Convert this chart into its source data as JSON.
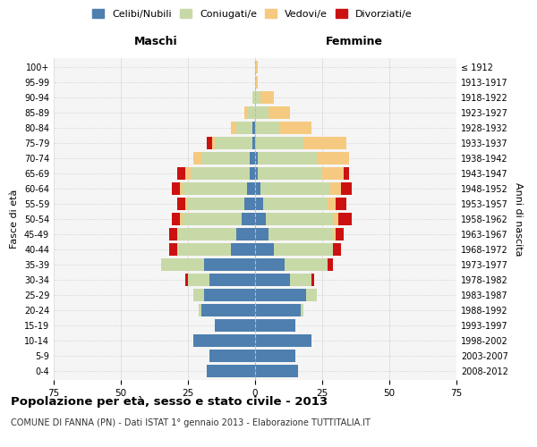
{
  "age_groups": [
    "0-4",
    "5-9",
    "10-14",
    "15-19",
    "20-24",
    "25-29",
    "30-34",
    "35-39",
    "40-44",
    "45-49",
    "50-54",
    "55-59",
    "60-64",
    "65-69",
    "70-74",
    "75-79",
    "80-84",
    "85-89",
    "90-94",
    "95-99",
    "100+"
  ],
  "birth_years": [
    "2008-2012",
    "2003-2007",
    "1998-2002",
    "1993-1997",
    "1988-1992",
    "1983-1987",
    "1978-1982",
    "1973-1977",
    "1968-1972",
    "1963-1967",
    "1958-1962",
    "1953-1957",
    "1948-1952",
    "1943-1947",
    "1938-1942",
    "1933-1937",
    "1928-1932",
    "1923-1927",
    "1918-1922",
    "1913-1917",
    "≤ 1912"
  ],
  "colors": {
    "single": "#4e7faf",
    "married": "#c8d9a8",
    "widowed": "#f5ca80",
    "divorced": "#cc1111"
  },
  "males": {
    "single": [
      18,
      17,
      23,
      15,
      20,
      19,
      17,
      19,
      9,
      7,
      5,
      4,
      3,
      2,
      2,
      1,
      1,
      0,
      0,
      0,
      0
    ],
    "married": [
      0,
      0,
      0,
      0,
      1,
      4,
      8,
      16,
      20,
      22,
      22,
      21,
      24,
      22,
      18,
      14,
      6,
      3,
      1,
      0,
      0
    ],
    "widowed": [
      0,
      0,
      0,
      0,
      0,
      0,
      0,
      0,
      0,
      0,
      1,
      1,
      1,
      2,
      3,
      1,
      2,
      1,
      0,
      0,
      0
    ],
    "divorced": [
      0,
      0,
      0,
      0,
      0,
      0,
      1,
      0,
      3,
      3,
      3,
      3,
      3,
      3,
      0,
      2,
      0,
      0,
      0,
      0,
      0
    ]
  },
  "females": {
    "single": [
      16,
      15,
      21,
      15,
      17,
      19,
      13,
      11,
      7,
      5,
      4,
      3,
      2,
      1,
      1,
      0,
      0,
      0,
      0,
      0,
      0
    ],
    "married": [
      0,
      0,
      0,
      0,
      1,
      4,
      8,
      16,
      22,
      24,
      25,
      24,
      26,
      24,
      22,
      18,
      9,
      5,
      2,
      0,
      0
    ],
    "widowed": [
      0,
      0,
      0,
      0,
      0,
      0,
      0,
      0,
      0,
      1,
      2,
      3,
      4,
      8,
      12,
      16,
      12,
      8,
      5,
      1,
      1
    ],
    "divorced": [
      0,
      0,
      0,
      0,
      0,
      0,
      1,
      2,
      3,
      3,
      5,
      4,
      4,
      2,
      0,
      0,
      0,
      0,
      0,
      0,
      0
    ]
  },
  "xlim": 75,
  "title": "Popolazione per età, sesso e stato civile - 2013",
  "subtitle": "COMUNE DI FANNA (PN) - Dati ISTAT 1° gennaio 2013 - Elaborazione TUTTITALIA.IT",
  "ylabel_left": "Fasce di età",
  "ylabel_right": "Anni di nascita",
  "xlabel_left": "Maschi",
  "xlabel_right": "Femmine",
  "legend_labels": [
    "Celibi/Nubili",
    "Coniugati/e",
    "Vedovi/e",
    "Divorziati/e"
  ],
  "bg_color": "#f5f5f5",
  "grid_color": "#cccccc"
}
